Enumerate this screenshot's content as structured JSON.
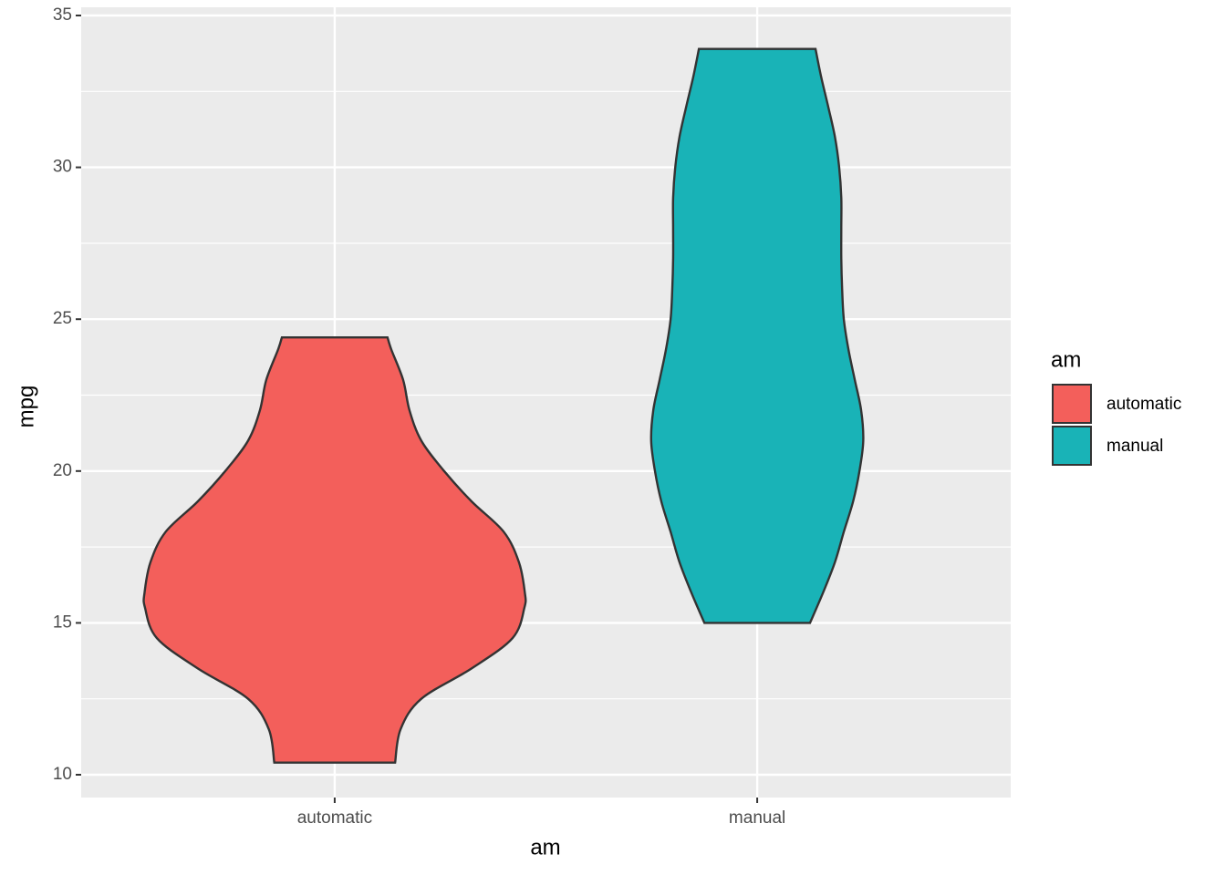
{
  "chart_data": {
    "type": "violin",
    "x_label": "am",
    "y_label": "mpg",
    "categories": [
      "automatic",
      "manual"
    ],
    "xlim": [
      0.4,
      2.6
    ],
    "ylim": [
      9.25,
      35.27
    ],
    "yticks": [
      10,
      15,
      20,
      25,
      30,
      35
    ],
    "minor_yticks": [
      12.5,
      17.5,
      22.5,
      27.5,
      32.5
    ],
    "grid": true,
    "legend_title": "am",
    "legend_position": "right",
    "series": [
      {
        "name": "automatic",
        "color": "#f35f5b",
        "y": [
          10.4,
          11.5,
          12.5,
          13.5,
          14.5,
          15.5,
          16,
          17,
          18,
          19,
          20,
          21,
          22,
          23,
          24,
          24.4
        ],
        "width": [
          0.143,
          0.156,
          0.205,
          0.324,
          0.421,
          0.449,
          0.45,
          0.436,
          0.4,
          0.324,
          0.259,
          0.205,
          0.177,
          0.162,
          0.134,
          0.125
        ]
      },
      {
        "name": "manual",
        "color": "#19b3b7",
        "y": [
          15,
          16,
          17,
          18,
          19,
          20,
          21,
          22,
          23,
          24,
          25,
          26,
          27,
          28,
          29,
          30,
          31,
          32,
          33,
          33.9
        ],
        "width": [
          0.125,
          0.156,
          0.184,
          0.205,
          0.227,
          0.242,
          0.251,
          0.246,
          0.231,
          0.216,
          0.205,
          0.201,
          0.199,
          0.199,
          0.199,
          0.194,
          0.184,
          0.168,
          0.151,
          0.138
        ]
      }
    ]
  }
}
